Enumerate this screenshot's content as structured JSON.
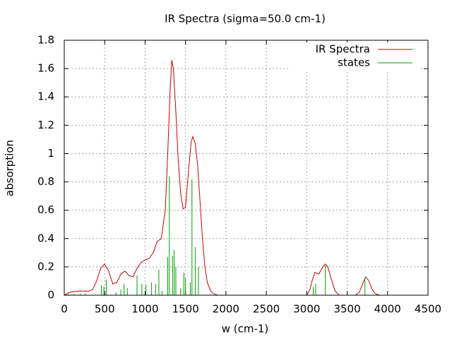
{
  "chart_data": {
    "type": "line",
    "title": "IR Spectra (sigma=50.0 cm-1)",
    "x_label": "w (cm-1)",
    "y_label": "absorption",
    "xlim": [
      0,
      4500
    ],
    "ylim": [
      0,
      1.8
    ],
    "xticks": [
      0,
      500,
      1000,
      1500,
      2000,
      2500,
      3000,
      3500,
      4000,
      4500
    ],
    "yticks": [
      0,
      0.2,
      0.4,
      0.6,
      0.8,
      1,
      1.2,
      1.4,
      1.6,
      1.8
    ],
    "grid": true,
    "legend": "top-right",
    "series": [
      {
        "name": "IR Spectra",
        "color": "#cc0000",
        "style": "line",
        "x": [
          0,
          50,
          100,
          200,
          300,
          350,
          400,
          450,
          500,
          550,
          600,
          650,
          700,
          750,
          800,
          850,
          900,
          950,
          1000,
          1050,
          1100,
          1150,
          1200,
          1250,
          1280,
          1310,
          1330,
          1350,
          1380,
          1410,
          1440,
          1470,
          1500,
          1540,
          1570,
          1590,
          1620,
          1650,
          1680,
          1710,
          1740,
          1770,
          1810,
          1850,
          1900,
          2000,
          2500,
          3000,
          3040,
          3070,
          3100,
          3150,
          3200,
          3230,
          3260,
          3300,
          3350,
          3400,
          3600,
          3650,
          3690,
          3730,
          3770,
          3810,
          3850,
          3900,
          4000,
          4350
        ],
        "values": [
          0,
          0.015,
          0.025,
          0.03,
          0.028,
          0.04,
          0.1,
          0.19,
          0.22,
          0.17,
          0.08,
          0.09,
          0.15,
          0.17,
          0.14,
          0.13,
          0.19,
          0.23,
          0.25,
          0.26,
          0.3,
          0.38,
          0.4,
          0.6,
          1.0,
          1.45,
          1.66,
          1.6,
          1.3,
          0.95,
          0.72,
          0.61,
          0.62,
          0.9,
          1.08,
          1.12,
          1.07,
          0.92,
          0.66,
          0.4,
          0.2,
          0.09,
          0.03,
          0.01,
          0,
          0,
          0,
          0,
          0.04,
          0.11,
          0.16,
          0.15,
          0.2,
          0.22,
          0.2,
          0.12,
          0.03,
          0,
          0,
          0.02,
          0.08,
          0.13,
          0.1,
          0.04,
          0.01,
          0,
          0,
          0
        ]
      },
      {
        "name": "states",
        "color": "#00a000",
        "style": "impulses",
        "x": [
          50,
          120,
          200,
          260,
          460,
          490,
          520,
          640,
          700,
          740,
          780,
          900,
          960,
          1010,
          1080,
          1130,
          1170,
          1210,
          1280,
          1300,
          1340,
          1360,
          1380,
          1440,
          1480,
          1500,
          1560,
          1580,
          1620,
          1660,
          3080,
          3110,
          3230,
          3720
        ],
        "values": [
          0.01,
          0.01,
          0.01,
          0.01,
          0.07,
          0.06,
          0.11,
          0.02,
          0.04,
          0.08,
          0.05,
          0.14,
          0.08,
          0.07,
          0.09,
          0.08,
          0.18,
          0.03,
          0.27,
          0.84,
          0.28,
          0.32,
          0.2,
          0.05,
          0.16,
          0.12,
          0.09,
          0.82,
          0.34,
          0.2,
          0.06,
          0.08,
          0.21,
          0.12
        ]
      }
    ]
  }
}
